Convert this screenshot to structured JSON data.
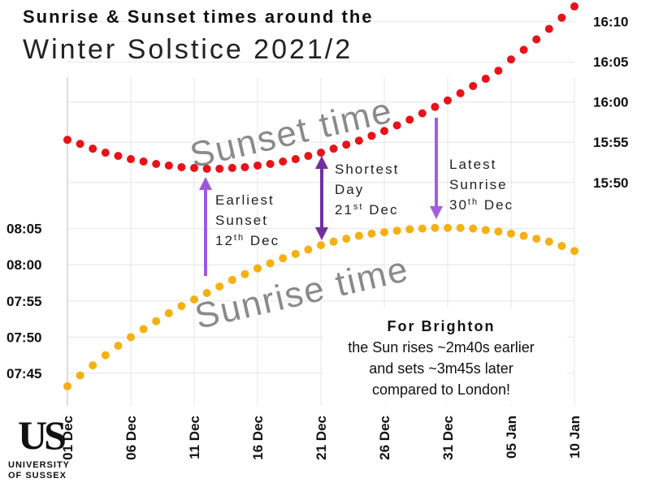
{
  "chart_data": {
    "type": "scatter",
    "title": "Sunrise & Sunset times around the",
    "subtitle": "Winter Solstice 2021/2",
    "categories": [
      "01 Dec",
      null,
      null,
      null,
      null,
      "06 Dec",
      null,
      null,
      null,
      null,
      "11 Dec",
      null,
      null,
      null,
      null,
      "16 Dec",
      null,
      null,
      null,
      null,
      "21 Dec",
      null,
      null,
      null,
      null,
      "26 Dec",
      null,
      null,
      null,
      null,
      "31 Dec",
      null,
      null,
      null,
      null,
      "05 Jan",
      null,
      null,
      null,
      null,
      "10 Jan"
    ],
    "series": [
      {
        "name": "Sunset time",
        "color": "#e8121a",
        "axis": "y2",
        "values": [
          955.3,
          954.8,
          954.2,
          953.7,
          953.3,
          952.9,
          952.6,
          952.3,
          952.1,
          951.9,
          951.8,
          951.7,
          951.7,
          951.8,
          951.9,
          952.1,
          952.3,
          952.6,
          952.9,
          953.3,
          953.7,
          954.2,
          954.7,
          955.2,
          955.8,
          956.4,
          957.1,
          957.8,
          958.6,
          959.4,
          960.2,
          961.1,
          962.0,
          962.9,
          963.9,
          965.3,
          966.5,
          967.8,
          969.1,
          970.5,
          971.9
        ]
      },
      {
        "name": "Sunrise time",
        "color": "#f5b011",
        "values": [
          463.2,
          464.7,
          466.1,
          467.5,
          468.8,
          470.0,
          471.1,
          472.2,
          473.3,
          474.3,
          475.2,
          476.1,
          477.0,
          477.9,
          478.7,
          479.5,
          480.2,
          480.9,
          481.5,
          482.1,
          482.7,
          483.2,
          483.6,
          484.0,
          484.3,
          484.5,
          484.7,
          484.9,
          485.0,
          485.1,
          485.1,
          485.1,
          485.0,
          484.8,
          484.6,
          484.3,
          484.0,
          483.6,
          483.2,
          482.6,
          481.9
        ]
      }
    ],
    "ylim": [
      460.5,
      516.6
    ],
    "yticks": [
      {
        "value": 465,
        "label": "07:45"
      },
      {
        "value": 470,
        "label": "07:50"
      },
      {
        "value": 475,
        "label": "07:55"
      },
      {
        "value": 480,
        "label": "08:00"
      },
      {
        "value": 485,
        "label": "08:05"
      }
    ],
    "y2lim": [
      922.2,
      972.7
    ],
    "y2ticks": [
      {
        "value": 950,
        "label": "15:50"
      },
      {
        "value": 955,
        "label": "15:55"
      },
      {
        "value": 960,
        "label": "16:00"
      },
      {
        "value": 965,
        "label": "16:05"
      },
      {
        "value": 970,
        "label": "16:10"
      }
    ],
    "grid": true,
    "annotations": [
      {
        "lines": [
          [
            "Earliest"
          ],
          [
            "Sunset"
          ],
          [
            "12",
            "th",
            " Dec"
          ]
        ]
      },
      {
        "lines": [
          [
            "Shortest"
          ],
          [
            "Day"
          ],
          [
            "21",
            "st",
            " Dec"
          ]
        ]
      },
      {
        "lines": [
          [
            "Latest"
          ],
          [
            "Sunrise"
          ],
          [
            "30",
            "th",
            " Dec"
          ]
        ]
      }
    ],
    "note": {
      "title": "For Brighton",
      "lines": [
        "the Sun rises ~2m40s earlier",
        "and sets ~3m45s later",
        "compared to London!"
      ]
    },
    "logo": {
      "mark": "US",
      "lines": [
        "UNIVERSITY",
        "OF SUSSEX"
      ]
    }
  }
}
